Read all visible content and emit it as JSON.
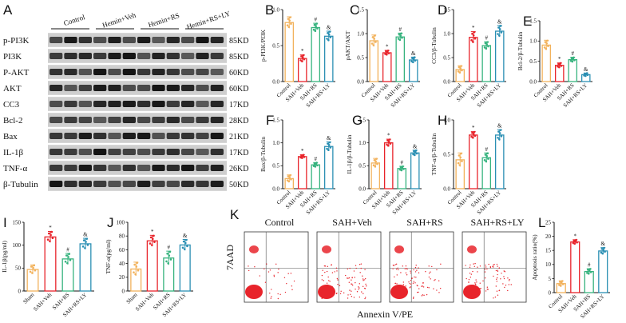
{
  "blot": {
    "letter": "A",
    "groups": [
      "Control",
      "Hemin+Veh",
      "Hemin+RS",
      "Hemin+RS+LY"
    ],
    "rows": [
      {
        "protein": "p-PI3K",
        "kd": "85KD"
      },
      {
        "protein": "PI3K",
        "kd": "85KD"
      },
      {
        "protein": "P-AKT",
        "kd": "60KD"
      },
      {
        "protein": "AKT",
        "kd": "60KD"
      },
      {
        "protein": "CC3",
        "kd": "17KD"
      },
      {
        "protein": "Bcl-2",
        "kd": "28KD"
      },
      {
        "protein": "Bax",
        "kd": "21KD"
      },
      {
        "protein": "IL-1β",
        "kd": "17KD"
      },
      {
        "protein": "TNF-α",
        "kd": "26KD"
      },
      {
        "protein": "β-Tubulin",
        "kd": "50KD"
      }
    ]
  },
  "flow": {
    "letter": "K",
    "titles": [
      "Control",
      "SAH+Veh",
      "SAH+RS",
      "SAH+RS+LY"
    ],
    "ylabel": "7AAD",
    "xlabel": "Annexin V/PE"
  },
  "colors": {
    "g1": "#f2b25c",
    "g2": "#e8242b",
    "g3": "#36b37e",
    "g4": "#2a8fb3"
  },
  "chart_data": [
    {
      "id": "B",
      "type": "bar",
      "categories": [
        "Control",
        "SAH+Veh",
        "SAH+RS",
        "SAH+RS+LY"
      ],
      "values": [
        0.82,
        0.32,
        0.75,
        0.63
      ],
      "errors": [
        0.08,
        0.05,
        0.06,
        0.07
      ],
      "ylabel": "p-PI3K/PI3K",
      "ylim": [
        0,
        1.0
      ],
      "yticks": [
        "0.0",
        "0.5",
        "1.0"
      ],
      "marks": [
        "",
        "*",
        "#",
        "&"
      ]
    },
    {
      "id": "C",
      "type": "bar",
      "categories": [
        "Control",
        "SAH+Veh",
        "SAH+RS",
        "SAH+RS+LY"
      ],
      "values": [
        0.85,
        0.6,
        0.93,
        0.45
      ],
      "errors": [
        0.12,
        0.05,
        0.08,
        0.06
      ],
      "ylabel": "pAKT/AKT",
      "ylim": [
        0,
        1.5
      ],
      "yticks": [
        "0.0",
        "0.5",
        "1.0",
        "1.5"
      ],
      "marks": [
        "",
        "*",
        "#",
        "&"
      ]
    },
    {
      "id": "D",
      "type": "bar",
      "categories": [
        "Control",
        "SAH+Veh",
        "SAH+RS",
        "SAH+RS+LY"
      ],
      "values": [
        0.25,
        0.92,
        0.75,
        1.05
      ],
      "errors": [
        0.08,
        0.12,
        0.08,
        0.12
      ],
      "ylabel": "CC3/β-Tubulin",
      "ylim": [
        0,
        1.5
      ],
      "yticks": [
        "0.0",
        "0.5",
        "1.0",
        "1.5"
      ],
      "marks": [
        "",
        "*",
        "#",
        "&"
      ]
    },
    {
      "id": "E",
      "type": "bar",
      "categories": [
        "Control",
        "SAH+Veh",
        "SAH+RS",
        "SAH+RS+LY"
      ],
      "values": [
        0.9,
        0.4,
        0.54,
        0.17
      ],
      "errors": [
        0.12,
        0.06,
        0.06,
        0.04
      ],
      "ylabel": "Bcl-2/β-Tubulin",
      "ylim": [
        0,
        1.5
      ],
      "yticks": [
        "0.0",
        "0.5",
        "1.0",
        "1.5"
      ],
      "marks": [
        "",
        "*",
        "#",
        "&"
      ]
    },
    {
      "id": "F",
      "type": "bar",
      "categories": [
        "Control",
        "SAH+Veh",
        "SAH+RS",
        "SAH+RS+LY"
      ],
      "values": [
        0.22,
        0.7,
        0.52,
        0.92
      ],
      "errors": [
        0.08,
        0.04,
        0.05,
        0.1
      ],
      "ylabel": "Bax/β-Tubulin",
      "ylim": [
        0,
        1.5
      ],
      "yticks": [
        "0.0",
        "0.5",
        "1.0",
        "1.5"
      ],
      "marks": [
        "",
        "*",
        "#",
        "&"
      ]
    },
    {
      "id": "G",
      "type": "bar",
      "categories": [
        "Control",
        "SAH+Veh",
        "SAH+RS",
        "SAH+RS+LY"
      ],
      "values": [
        0.56,
        1.0,
        0.44,
        0.78
      ],
      "errors": [
        0.1,
        0.08,
        0.05,
        0.06
      ],
      "ylabel": "IL-1β/β-Tubulin",
      "ylim": [
        0,
        1.5
      ],
      "yticks": [
        "0.0",
        "0.5",
        "1.0",
        "1.5"
      ],
      "marks": [
        "",
        "*",
        "#",
        "&"
      ]
    },
    {
      "id": "H",
      "type": "bar",
      "categories": [
        "Control",
        "SAH+Veh",
        "SAH+RS",
        "SAH+RS+LY"
      ],
      "values": [
        0.42,
        0.78,
        0.45,
        0.78
      ],
      "errors": [
        0.1,
        0.05,
        0.07,
        0.08
      ],
      "ylabel": "TNF-α/β-Tubulin",
      "ylim": [
        0,
        1.0
      ],
      "yticks": [
        "0.0",
        "0.5",
        "1.0"
      ],
      "marks": [
        "",
        "*",
        "#",
        "&"
      ]
    },
    {
      "id": "I",
      "type": "bar",
      "categories": [
        "Sham",
        "SAH+Veh",
        "SAH+RS",
        "SAH+RS+LY"
      ],
      "values": [
        47,
        118,
        70,
        103
      ],
      "errors": [
        10,
        12,
        12,
        12
      ],
      "ylabel": "IL-1β(pg/ml)",
      "ylim": [
        0,
        150
      ],
      "yticks": [
        "0",
        "50",
        "100",
        "150"
      ],
      "marks": [
        "",
        "*",
        "#",
        "&"
      ]
    },
    {
      "id": "J",
      "type": "bar",
      "categories": [
        "Sham",
        "SAH+Veh",
        "SAH+RS",
        "SAH+RS+LY"
      ],
      "values": [
        32,
        73,
        48,
        67
      ],
      "errors": [
        10,
        8,
        10,
        8
      ],
      "ylabel": "TNF-α(pg/ml)",
      "ylim": [
        0,
        100
      ],
      "yticks": [
        "0",
        "20",
        "40",
        "60",
        "80",
        "100"
      ],
      "marks": [
        "",
        "*",
        "#",
        "&"
      ]
    },
    {
      "id": "L",
      "type": "bar",
      "categories": [
        "Control",
        "SAH+Veh",
        "SAH+RS",
        "SAH+RS+LY"
      ],
      "values": [
        3.2,
        18.0,
        7.5,
        14.8
      ],
      "errors": [
        1.0,
        0.8,
        1.0,
        1.2
      ],
      "ylabel": "Apoptosis ratio(%)",
      "ylim": [
        0,
        25
      ],
      "yticks": [
        "0",
        "5",
        "10",
        "15",
        "20",
        "25"
      ],
      "marks": [
        "",
        "*",
        "#",
        "&"
      ]
    }
  ]
}
